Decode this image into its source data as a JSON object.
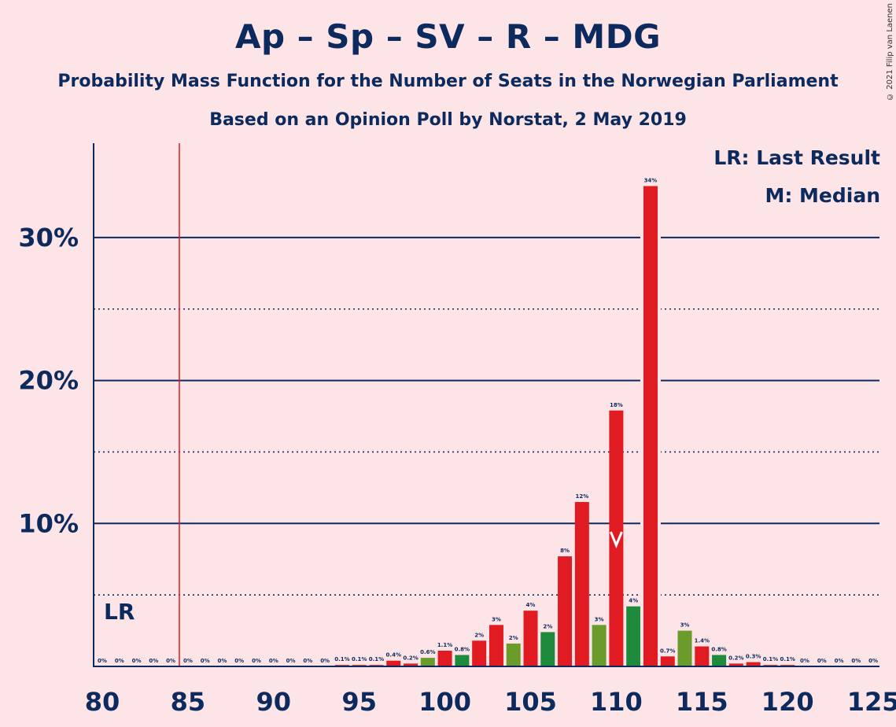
{
  "header": {
    "title": "Ap – Sp – SV – R – MDG",
    "subtitle": "Probability Mass Function for the Number of Seats in the Norwegian Parliament",
    "subtitle2": "Based on an Opinion Poll by Norstat, 2 May 2019",
    "copyright": "© 2021 Filip van Laenen"
  },
  "legend": {
    "lr": "LR: Last Result",
    "median": "M: Median"
  },
  "chart_data": {
    "type": "bar",
    "x": [
      80,
      81,
      82,
      83,
      84,
      85,
      86,
      87,
      88,
      89,
      90,
      91,
      92,
      93,
      94,
      95,
      96,
      97,
      98,
      99,
      100,
      101,
      102,
      103,
      104,
      105,
      106,
      107,
      108,
      109,
      110,
      111,
      112,
      113,
      114,
      115,
      116,
      117,
      118,
      119,
      120,
      121,
      122,
      123,
      124,
      125
    ],
    "values": [
      0,
      0,
      0,
      0,
      0,
      0,
      0,
      0,
      0,
      0,
      0,
      0,
      0,
      0,
      0.1,
      0.1,
      0.1,
      0.4,
      0.2,
      0.6,
      1.1,
      0.8,
      1.8,
      2.9,
      1.6,
      3.9,
      2.4,
      7.7,
      11.5,
      2.9,
      17.9,
      4.2,
      33.6,
      0.7,
      2.5,
      1.4,
      0.8,
      0.2,
      0.3,
      0.1,
      0.1,
      0,
      0,
      0,
      0,
      0
    ],
    "labels": [
      "0%",
      "0%",
      "0%",
      "0%",
      "0%",
      "0%",
      "0%",
      "0%",
      "0%",
      "0%",
      "0%",
      "0%",
      "0%",
      "0%",
      "0.1%",
      "0.1%",
      "0.1%",
      "0.4%",
      "0.2%",
      "0.6%",
      "1.1%",
      "0.8%",
      "2%",
      "3%",
      "2%",
      "4%",
      "2%",
      "8%",
      "12%",
      "3%",
      "18%",
      "4%",
      "34%",
      "0.7%",
      "3%",
      "1.4%",
      "0.8%",
      "0.2%",
      "0.3%",
      "0.1%",
      "0.1%",
      "0%",
      "0%",
      "0%",
      "0%",
      "0%"
    ],
    "x_ticks": [
      "80",
      "85",
      "90",
      "95",
      "100",
      "105",
      "110",
      "115",
      "120",
      "125"
    ],
    "y_ticks": [
      "10%",
      "20%",
      "30%"
    ],
    "ylim": [
      0,
      36.5
    ],
    "colors": {
      "red": "#e11b22",
      "olive": "#6b9b2a",
      "green": "#1d8a3c",
      "axis": "#0d2a5e",
      "last_result": "#e11b22"
    },
    "last_result": {
      "seats": 84.5,
      "label": "LR"
    },
    "median": {
      "seats": 110,
      "label": "M"
    }
  }
}
